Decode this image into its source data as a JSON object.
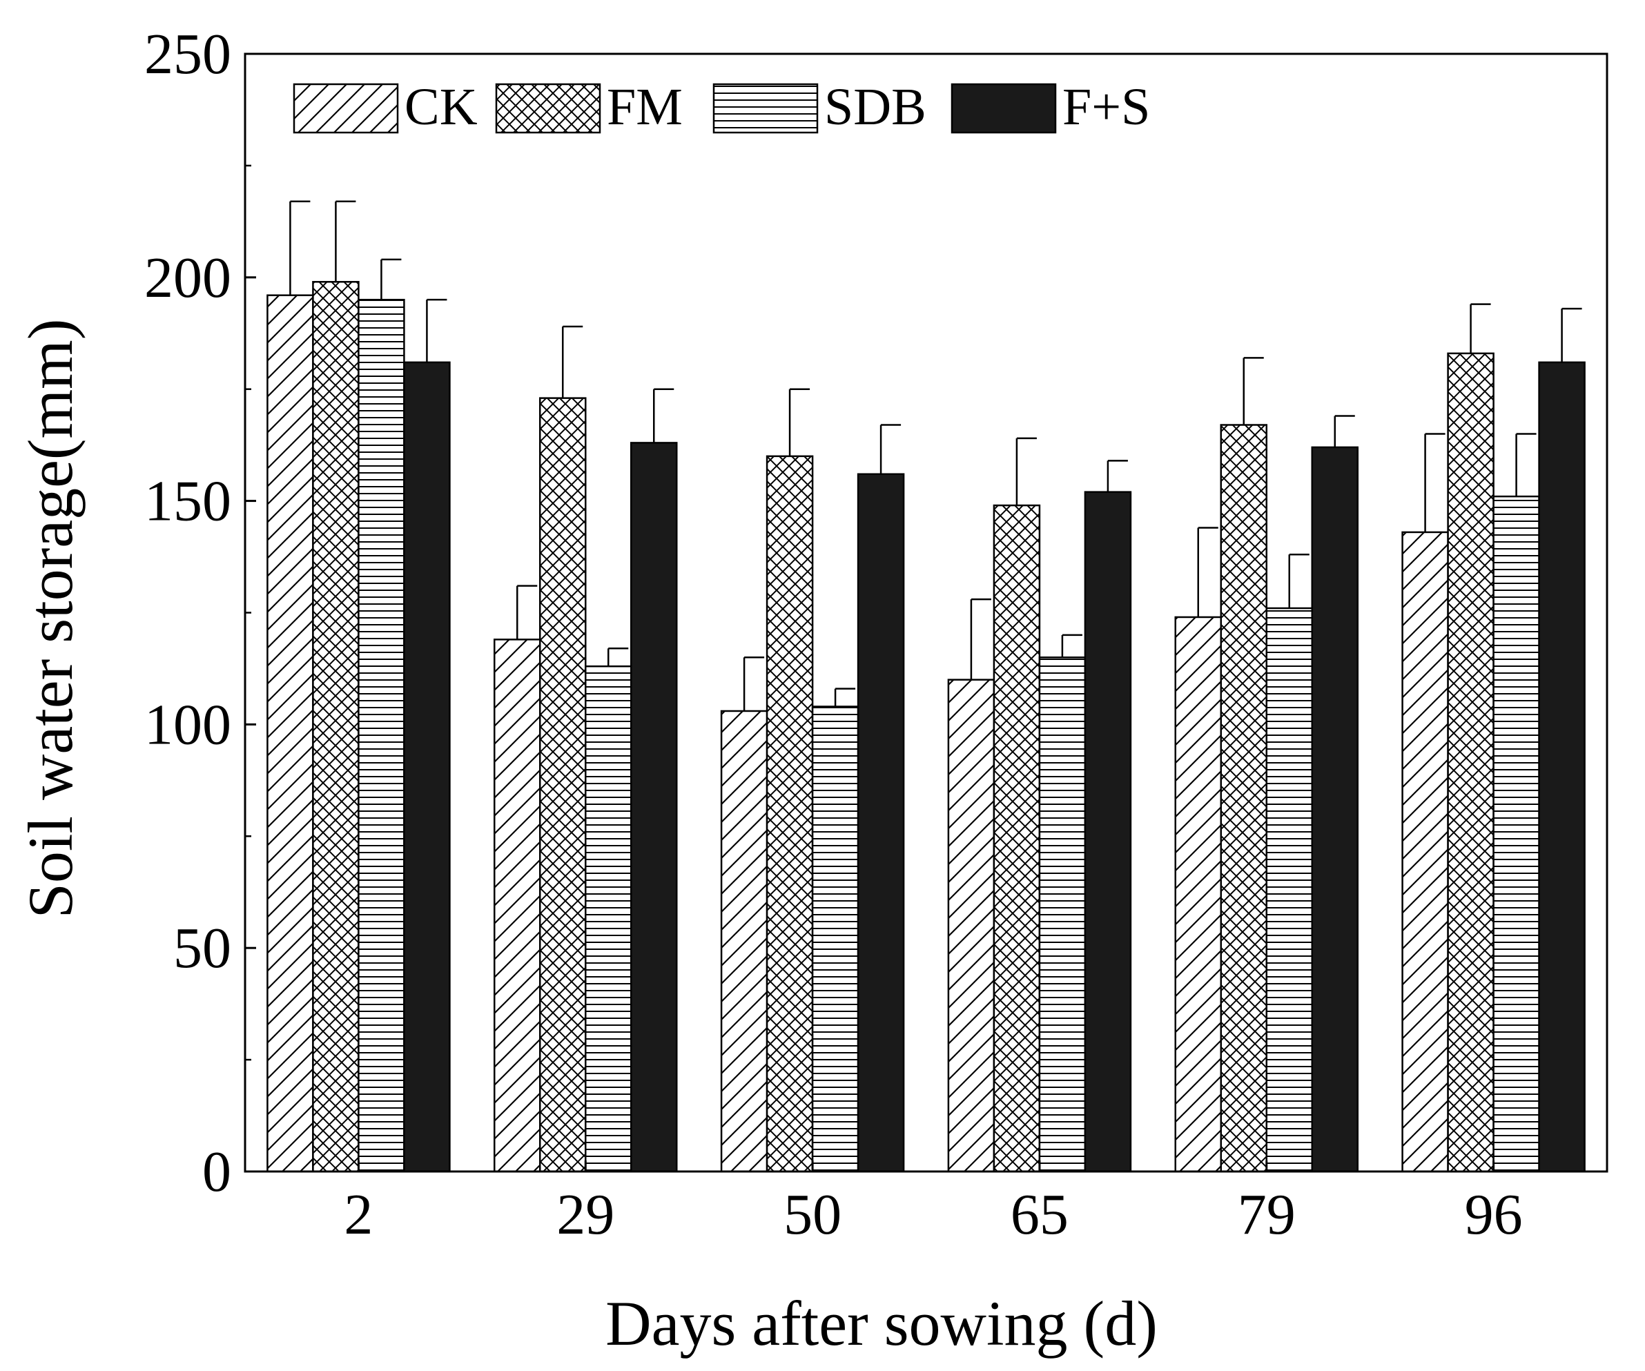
{
  "chart_data": {
    "type": "bar",
    "title": "",
    "xlabel": "Days after sowing (d)",
    "ylabel": "Soil water storage(mm)",
    "ylim": [
      0,
      250
    ],
    "yticks": [
      0,
      50,
      100,
      150,
      200,
      250
    ],
    "categories": [
      "2",
      "29",
      "50",
      "65",
      "79",
      "96"
    ],
    "legend_position": "top-left",
    "series": [
      {
        "name": "CK",
        "pattern": "diagonal-hatch",
        "values": [
          196,
          119,
          103,
          110,
          124,
          143
        ],
        "errors": [
          21,
          12,
          12,
          18,
          20,
          22
        ]
      },
      {
        "name": "FM",
        "pattern": "crosshatch",
        "values": [
          199,
          173,
          160,
          149,
          167,
          183
        ],
        "errors": [
          18,
          16,
          15,
          15,
          15,
          11
        ]
      },
      {
        "name": "SDB",
        "pattern": "horizontal-lines",
        "values": [
          195,
          113,
          104,
          115,
          126,
          151
        ],
        "errors": [
          9,
          4,
          4,
          5,
          12,
          14
        ]
      },
      {
        "name": "F+S",
        "pattern": "solid",
        "values": [
          181,
          163,
          156,
          152,
          162,
          181
        ],
        "errors": [
          14,
          12,
          11,
          7,
          7,
          12
        ]
      }
    ]
  }
}
